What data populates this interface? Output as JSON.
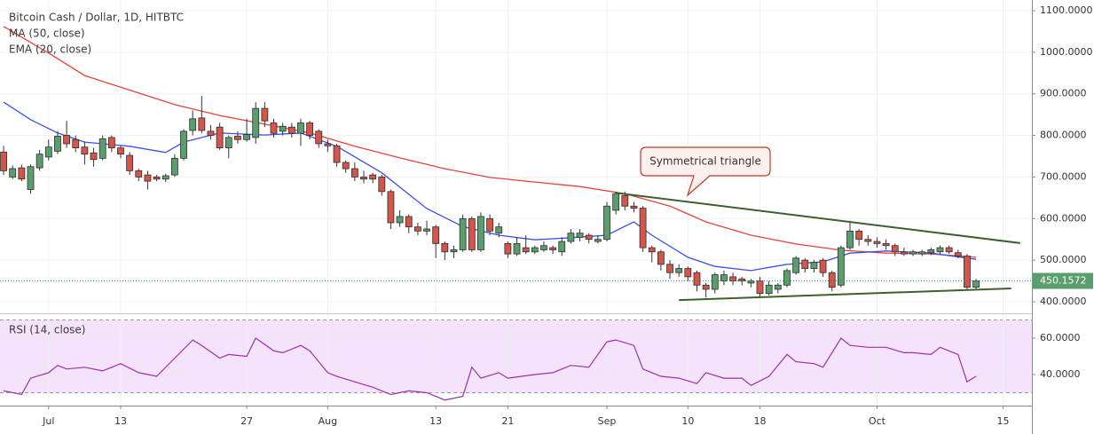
{
  "chart_data": [
    {
      "type": "candlestick",
      "title": "Bitcoin Cash / Dollar, 1D, HITBTC",
      "up_color": "#5a9e6e",
      "down_color": "#d4564a",
      "open": [
        760,
        700,
        722,
        670,
        722,
        748,
        762,
        800,
        790,
        772,
        758,
        745,
        795,
        770,
        752,
        715,
        705,
        700,
        695,
        705,
        745,
        812,
        842,
        810,
        820,
        770,
        798,
        790,
        795,
        865,
        830,
        810,
        820,
        805,
        830,
        810,
        780,
        775,
        735,
        720,
        700,
        705,
        700,
        665,
        590,
        605,
        580,
        570,
        580,
        540,
        520,
        525,
        600,
        525,
        600,
        565,
        540,
        515,
        530,
        520,
        525,
        530,
        520,
        545,
        555,
        560,
        545,
        550,
        620,
        655,
        630,
        625,
        530,
        520,
        490,
        470,
        480,
        470,
        440,
        430,
        450,
        460,
        455,
        445,
        450,
        420,
        430,
        440,
        470,
        500,
        480,
        500,
        470,
        440,
        530,
        570,
        550,
        545,
        540,
        535,
        520,
        515,
        515,
        518,
        520,
        530,
        518,
        510,
        435
      ],
      "high": [
        775,
        728,
        730,
        730,
        765,
        790,
        810,
        835,
        800,
        785,
        770,
        800,
        800,
        775,
        760,
        720,
        715,
        705,
        708,
        755,
        815,
        860,
        895,
        825,
        830,
        800,
        810,
        840,
        880,
        880,
        840,
        830,
        830,
        840,
        835,
        815,
        790,
        780,
        740,
        735,
        715,
        710,
        705,
        670,
        620,
        610,
        590,
        595,
        585,
        545,
        535,
        610,
        605,
        615,
        610,
        590,
        545,
        555,
        560,
        535,
        545,
        535,
        555,
        575,
        575,
        565,
        560,
        640,
        665,
        665,
        640,
        630,
        535,
        525,
        500,
        490,
        485,
        475,
        445,
        470,
        475,
        470,
        460,
        455,
        460,
        450,
        445,
        480,
        510,
        505,
        500,
        505,
        475,
        535,
        595,
        575,
        560,
        555,
        550,
        540,
        530,
        525,
        525,
        530,
        535,
        535,
        525,
        515,
        455
      ],
      "low": [
        705,
        695,
        690,
        660,
        715,
        740,
        755,
        770,
        760,
        730,
        725,
        740,
        760,
        745,
        705,
        690,
        670,
        690,
        688,
        700,
        740,
        800,
        805,
        790,
        765,
        745,
        780,
        785,
        780,
        820,
        795,
        800,
        795,
        775,
        790,
        770,
        760,
        725,
        710,
        690,
        685,
        685,
        655,
        575,
        580,
        565,
        560,
        560,
        505,
        500,
        505,
        520,
        520,
        520,
        560,
        555,
        505,
        510,
        515,
        515,
        520,
        515,
        510,
        540,
        545,
        540,
        540,
        545,
        610,
        620,
        615,
        520,
        495,
        475,
        455,
        460,
        450,
        425,
        410,
        420,
        440,
        440,
        440,
        435,
        410,
        415,
        420,
        435,
        465,
        470,
        470,
        460,
        425,
        435,
        525,
        535,
        535,
        530,
        525,
        510,
        510,
        510,
        510,
        512,
        515,
        515,
        505,
        430,
        430
      ],
      "close": [
        715,
        720,
        695,
        725,
        755,
        772,
        798,
        780,
        770,
        755,
        742,
        792,
        770,
        755,
        715,
        700,
        690,
        695,
        703,
        745,
        810,
        840,
        812,
        800,
        770,
        795,
        790,
        802,
        865,
        835,
        805,
        822,
        805,
        830,
        800,
        780,
        775,
        735,
        720,
        700,
        695,
        695,
        665,
        590,
        605,
        580,
        570,
        575,
        540,
        520,
        525,
        600,
        525,
        605,
        570,
        580,
        515,
        540,
        520,
        530,
        535,
        525,
        545,
        565,
        565,
        550,
        550,
        630,
        660,
        630,
        625,
        530,
        520,
        490,
        470,
        480,
        460,
        440,
        430,
        465,
        465,
        450,
        450,
        450,
        420,
        440,
        440,
        475,
        505,
        480,
        495,
        470,
        435,
        530,
        570,
        550,
        545,
        540,
        535,
        520,
        515,
        520,
        520,
        525,
        530,
        520,
        510,
        435,
        450
      ],
      "series": [
        {
          "name": "MA (50, close)",
          "color": "#e8423b",
          "x": [
            0,
            5,
            9,
            19,
            24,
            29,
            34,
            39,
            44,
            49,
            54,
            59,
            64,
            69,
            74,
            78,
            83,
            88,
            93,
            98,
            103,
            108
          ],
          "values": [
            1062,
            998,
            944,
            874,
            848,
            827,
            806,
            774,
            746,
            720,
            699,
            688,
            677,
            660,
            630,
            592,
            560,
            539,
            524,
            517,
            515,
            507
          ]
        },
        {
          "name": "EMA (20, close)",
          "color": "#3a4ff0",
          "x": [
            0,
            3,
            6,
            9,
            14,
            18,
            20,
            24,
            29,
            33,
            37,
            42,
            47,
            51,
            55,
            59,
            63,
            67,
            70,
            72,
            76,
            79,
            83,
            87,
            91,
            94,
            98,
            103,
            108
          ],
          "values": [
            880,
            838,
            806,
            784,
            774,
            759,
            784,
            806,
            801,
            806,
            774,
            710,
            624,
            581,
            560,
            549,
            554,
            560,
            592,
            560,
            507,
            485,
            475,
            490,
            496,
            517,
            522,
            517,
            502
          ]
        }
      ],
      "trendlines": [
        {
          "color": "#3f5f2d",
          "x": [
            67.9,
            112.9
          ],
          "values": [
            662,
            541
          ]
        },
        {
          "color": "#3f5f2d",
          "x": [
            75,
            111.9
          ],
          "values": [
            404,
            432
          ]
        }
      ],
      "annotation": "Symmetrical triangle",
      "last_value": 450.1572,
      "xlim": [
        -0.4,
        114.2
      ],
      "ylim": [
        374.4,
        1125.6
      ],
      "yticks": [
        {
          "value": 400,
          "label": "400.0000"
        },
        {
          "value": 500,
          "label": "500.0000"
        },
        {
          "value": 600,
          "label": "600.0000"
        },
        {
          "value": 700,
          "label": "700.0000"
        },
        {
          "value": 800,
          "label": "800.0000"
        },
        {
          "value": 900,
          "label": "900.0000"
        },
        {
          "value": 1000,
          "label": "1000.0000"
        },
        {
          "value": 1100,
          "label": "1100.0000"
        }
      ],
      "grid": true
    },
    {
      "type": "line",
      "title": "RSI (14, close)",
      "series": [
        {
          "name": "RSI",
          "color": "#9c30b0",
          "x": [
            0,
            2,
            3,
            5,
            6,
            7,
            9,
            11,
            13,
            15,
            17,
            19,
            21,
            22,
            24,
            25,
            27,
            28,
            30,
            31,
            33,
            34,
            36,
            37,
            39,
            41,
            43,
            45,
            47,
            49,
            51,
            52,
            53,
            55,
            56,
            59,
            61,
            63,
            65,
            67,
            68,
            70,
            71,
            73,
            75,
            77,
            78,
            80,
            82,
            83,
            85,
            87,
            88,
            90,
            91,
            93,
            94,
            96,
            98,
            100,
            101,
            103,
            104,
            106,
            107,
            108
          ],
          "values": [
            31,
            29,
            38,
            41,
            45,
            43,
            44,
            42,
            46,
            41,
            39,
            49,
            59,
            56,
            49,
            51,
            50,
            60,
            53,
            52,
            56,
            53,
            41,
            39,
            36,
            33,
            29,
            31,
            30,
            26,
            28,
            44,
            38,
            41,
            38,
            40,
            41,
            45,
            44,
            58,
            59,
            56,
            43,
            39,
            38,
            35,
            41,
            38,
            38,
            34,
            39,
            51,
            47,
            46,
            44,
            60,
            56,
            55,
            55,
            52,
            52,
            51,
            55,
            51,
            36,
            39
          ]
        }
      ],
      "band": [
        30,
        70
      ],
      "band_color": "#f4e3fb",
      "ylim": [
        22.9,
        72.7
      ],
      "yticks": [
        {
          "value": 40,
          "label": "40.0000"
        },
        {
          "value": 60,
          "label": "60.0000"
        }
      ],
      "xticks": [
        {
          "value": 5,
          "label": "Jul"
        },
        13,
        27,
        {
          "value": 36,
          "label": "Aug"
        },
        {
          "value": 48,
          "label": "13"
        },
        {
          "value": 56,
          "label": "21"
        },
        {
          "value": 67,
          "label": "Sep"
        },
        {
          "value": 76,
          "label": "10"
        },
        {
          "value": 84,
          "label": "18"
        },
        {
          "value": 97,
          "label": "Oct"
        },
        {
          "value": 111,
          "label": "15"
        }
      ]
    }
  ]
}
